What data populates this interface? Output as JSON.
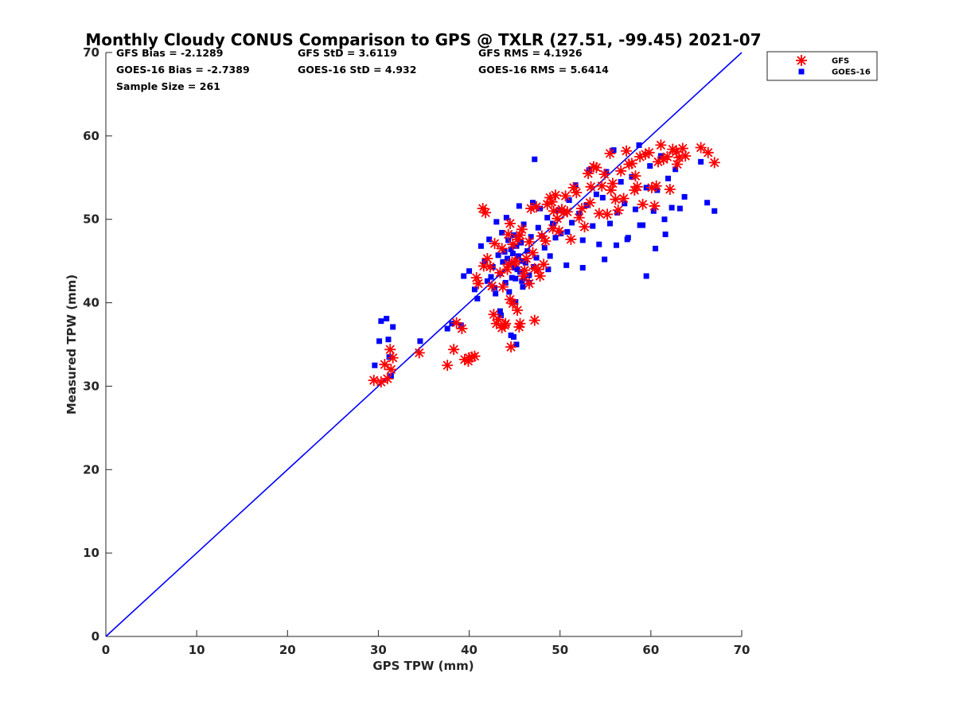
{
  "chart_data": {
    "type": "scatter",
    "title": "Monthly Cloudy CONUS Comparison to GPS @ TXLR (27.51, -99.45) 2021-07",
    "xlabel": "GPS TPW (mm)",
    "ylabel": "Measured TPW (mm)",
    "xlim": [
      0,
      70
    ],
    "ylim": [
      0,
      70
    ],
    "xticks": [
      "0",
      "10",
      "20",
      "30",
      "40",
      "50",
      "60",
      "70"
    ],
    "yticks": [
      "0",
      "10",
      "20",
      "30",
      "40",
      "50",
      "60",
      "70"
    ],
    "grid": false,
    "legend_position": "top-right-outside",
    "stats": [
      [
        "GFS Bias = -2.1289",
        "GFS StD = 3.6119",
        "GFS RMS = 4.1926"
      ],
      [
        "GOES-16 Bias = -2.7389",
        "GOES-16 StD = 4.932",
        "GOES-16 RMS = 5.6414"
      ],
      [
        "Sample Size = 261",
        "",
        ""
      ]
    ],
    "reference_line": {
      "x": [
        0,
        70
      ],
      "y": [
        0,
        70
      ],
      "color": "#0000ff"
    },
    "series": [
      {
        "name": "GFS",
        "marker": "asterisk",
        "color": "#ff0000",
        "x": [
          29.5,
          30.3,
          30.7,
          31.0,
          31.3,
          31.4,
          31.6,
          34.5,
          37.6,
          38.3,
          38.6,
          39.2,
          39.5,
          39.9,
          40.0,
          40.3,
          40.6,
          40.8,
          41.0,
          41.5,
          41.8,
          42.0,
          42.3,
          42.5,
          42.7,
          43.0,
          43.2,
          43.4,
          43.6,
          43.7,
          43.9,
          44.0,
          44.2,
          44.3,
          44.5,
          44.6,
          44.8,
          45.0,
          45.1,
          45.3,
          45.5,
          45.6,
          45.8,
          46.0,
          46.1,
          46.3,
          46.6,
          46.8,
          47.0,
          47.2,
          47.4,
          47.6,
          47.8,
          48.0,
          48.2,
          48.4,
          48.6,
          48.9,
          49.1,
          49.3,
          49.5,
          49.7,
          49.9,
          50.2,
          50.4,
          50.6,
          50.8,
          51.2,
          51.5,
          51.8,
          52.1,
          52.4,
          52.7,
          53.1,
          53.4,
          53.7,
          54.0,
          54.3,
          54.6,
          54.9,
          55.2,
          55.5,
          55.8,
          56.1,
          56.4,
          56.7,
          57.0,
          57.3,
          57.6,
          57.9,
          58.2,
          58.5,
          58.8,
          59.1,
          59.4,
          59.8,
          60.1,
          60.4,
          60.8,
          61.1,
          61.4,
          61.8,
          62.1,
          62.4,
          62.8,
          63.1,
          63.5,
          63.8,
          65.5,
          66.3,
          67.0,
          44.3,
          44.8,
          45.6,
          47.2,
          45.3,
          43.6,
          44.5,
          42.8,
          46.6,
          41.6,
          49.2,
          53.3,
          55.6,
          58.3,
          60.6,
          62.9
        ],
        "y": [
          30.7,
          30.5,
          32.6,
          30.9,
          34.4,
          32.0,
          33.4,
          34.0,
          32.5,
          34.4,
          37.6,
          36.9,
          33.2,
          33.0,
          33.4,
          33.5,
          33.6,
          43.0,
          42.3,
          51.3,
          50.8,
          45.3,
          44.3,
          42.0,
          38.6,
          37.5,
          38.0,
          43.6,
          37.0,
          41.9,
          37.3,
          37.5,
          44.0,
          44.6,
          40.4,
          34.7,
          39.9,
          44.8,
          45.0,
          39.1,
          37.1,
          37.5,
          48.8,
          43.2,
          43.9,
          45.3,
          42.3,
          51.3,
          46.0,
          37.9,
          51.5,
          44.0,
          43.2,
          48.0,
          44.6,
          47.4,
          51.8,
          52.6,
          52.1,
          51.0,
          52.9,
          50.1,
          48.6,
          51.2,
          50.8,
          52.8,
          50.9,
          47.6,
          53.8,
          53.2,
          50.2,
          51.3,
          49.1,
          55.5,
          53.9,
          56.3,
          56.2,
          50.7,
          54.0,
          55.4,
          50.6,
          57.9,
          54.3,
          52.4,
          51.1,
          55.8,
          52.5,
          58.2,
          56.6,
          56.7,
          53.5,
          53.9,
          57.5,
          51.8,
          57.8,
          58.0,
          53.8,
          51.6,
          56.9,
          58.9,
          57.2,
          57.5,
          53.6,
          58.4,
          58.1,
          57.4,
          58.5,
          57.6,
          58.6,
          58.0,
          56.8,
          48.2,
          47.0,
          48.1,
          44.1,
          47.6,
          46.5,
          49.5,
          47.1,
          47.3,
          44.4,
          48.9,
          52.0,
          53.5,
          55.2,
          54.0,
          56.6
        ]
      },
      {
        "name": "GOES-16",
        "marker": "square",
        "color": "#0000ff",
        "x": [
          29.6,
          30.1,
          30.3,
          30.9,
          31.1,
          31.2,
          31.4,
          31.6,
          34.6,
          37.6,
          38.1,
          39.1,
          39.4,
          40.0,
          40.6,
          40.9,
          41.3,
          41.7,
          42.0,
          42.2,
          42.4,
          42.6,
          42.8,
          43.0,
          43.2,
          43.4,
          43.6,
          43.7,
          43.9,
          44.0,
          44.1,
          44.2,
          44.3,
          44.4,
          44.5,
          44.6,
          44.7,
          44.8,
          44.9,
          45.0,
          45.1,
          45.2,
          45.3,
          45.4,
          45.5,
          45.6,
          45.7,
          45.8,
          45.9,
          46.0,
          46.2,
          46.4,
          46.6,
          46.8,
          47.0,
          47.2,
          47.4,
          47.6,
          47.8,
          48.0,
          48.3,
          48.6,
          48.9,
          49.2,
          49.5,
          49.8,
          50.1,
          50.4,
          50.7,
          51.0,
          51.3,
          51.7,
          52.1,
          52.5,
          52.9,
          53.2,
          53.6,
          54.0,
          54.3,
          54.7,
          55.1,
          55.5,
          55.9,
          56.3,
          56.7,
          57.1,
          57.5,
          57.9,
          58.3,
          58.7,
          59.1,
          59.5,
          59.9,
          60.3,
          60.7,
          61.1,
          61.5,
          61.9,
          62.3,
          62.7,
          63.2,
          63.7,
          65.5,
          66.2,
          67.0,
          59.5,
          60.5,
          47.1,
          46.6,
          45.2,
          43.5,
          42.9,
          44.6,
          46.0,
          48.7,
          50.8,
          52.5,
          54.9,
          56.2,
          57.4,
          58.8,
          61.6,
          44.9,
          45.8,
          45.1,
          43.4
        ],
        "y": [
          32.5,
          35.4,
          37.8,
          38.1,
          35.6,
          33.5,
          31.2,
          37.1,
          35.4,
          36.9,
          37.5,
          37.3,
          43.2,
          43.8,
          41.6,
          40.5,
          46.8,
          44.9,
          42.6,
          47.6,
          43.1,
          44.3,
          41.8,
          49.7,
          45.7,
          43.5,
          48.4,
          44.9,
          46.1,
          42.4,
          50.2,
          45.3,
          47.5,
          41.3,
          44.6,
          46.4,
          43.0,
          45.9,
          48.1,
          44.2,
          42.9,
          46.8,
          44.0,
          45.6,
          51.6,
          43.7,
          47.2,
          45.0,
          41.9,
          49.4,
          44.8,
          46.2,
          43.3,
          47.9,
          52.0,
          57.2,
          45.4,
          49.0,
          51.3,
          48.0,
          46.6,
          50.2,
          45.6,
          49.5,
          47.8,
          51.1,
          48.3,
          50.9,
          44.5,
          52.3,
          49.6,
          54.1,
          50.7,
          47.5,
          51.7,
          55.9,
          49.2,
          53.0,
          47.0,
          52.6,
          55.7,
          49.5,
          58.3,
          50.8,
          54.5,
          51.9,
          47.8,
          55.1,
          51.2,
          58.9,
          49.3,
          53.8,
          56.4,
          51.0,
          53.5,
          57.6,
          50.0,
          54.9,
          51.4,
          56.0,
          51.3,
          52.7,
          56.9,
          52.0,
          51.0,
          43.2,
          46.5,
          44.3,
          42.4,
          35.0,
          38.5,
          41.1,
          36.1,
          42.9,
          44.0,
          48.5,
          44.2,
          45.2,
          46.9,
          47.6,
          49.3,
          48.2,
          35.9,
          42.6,
          40.1,
          39.0
        ]
      }
    ]
  }
}
